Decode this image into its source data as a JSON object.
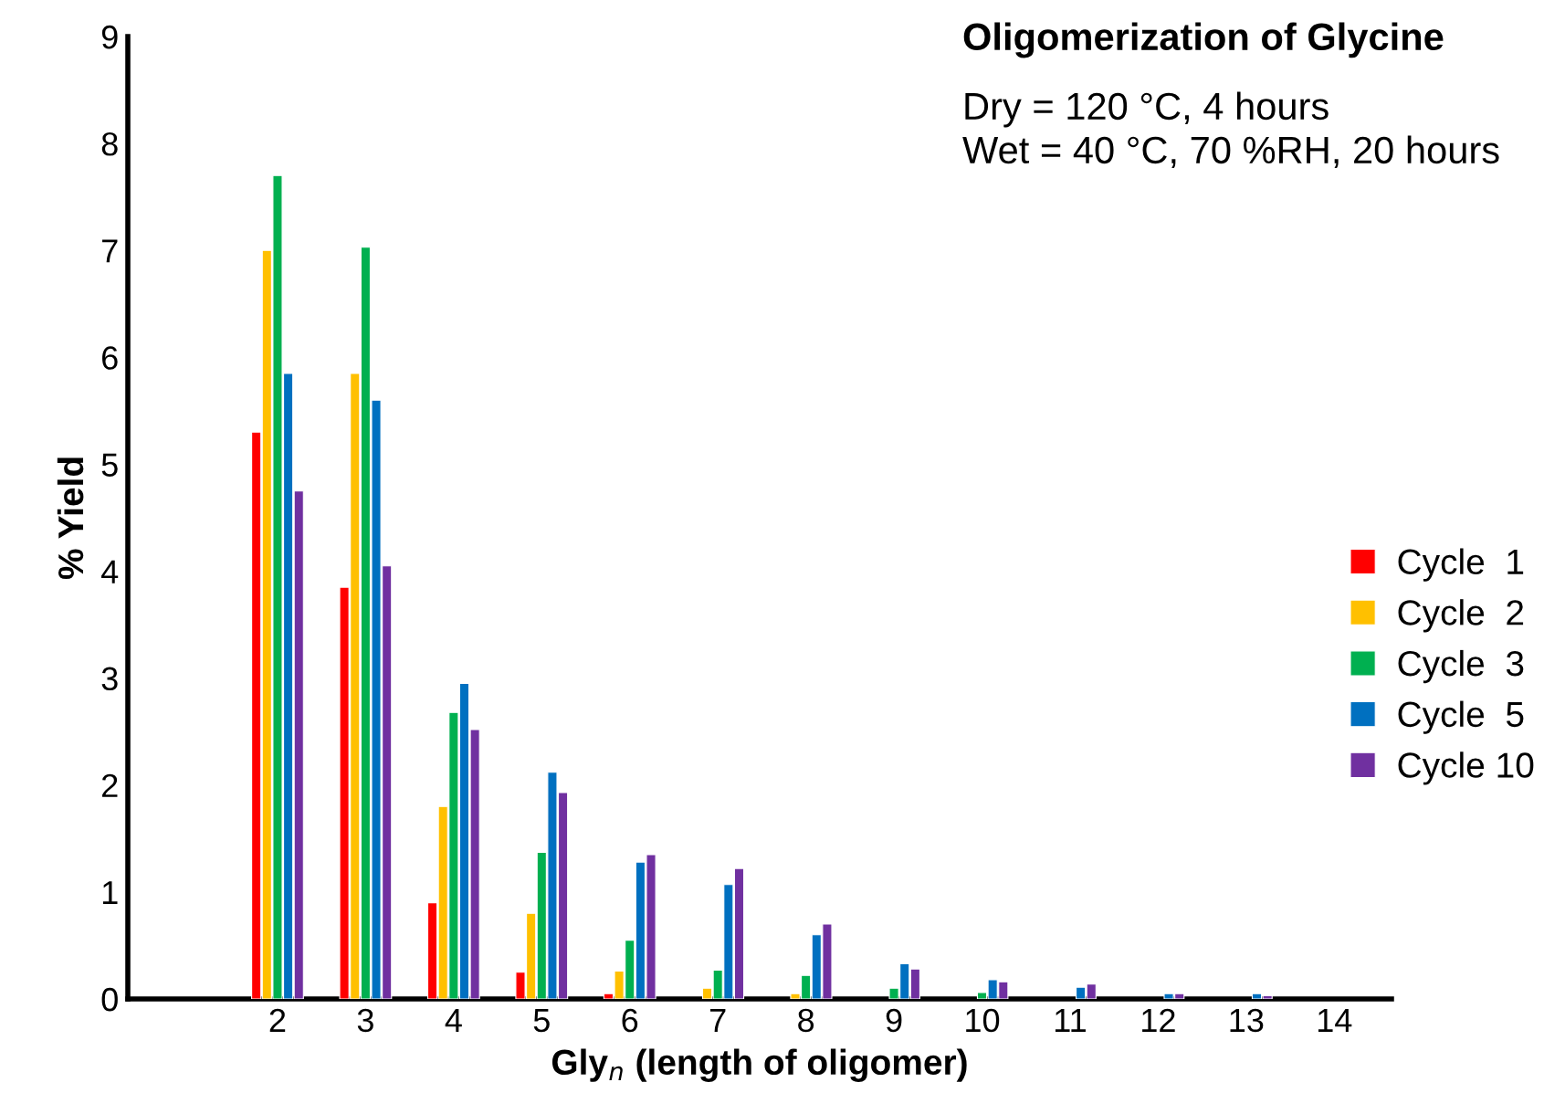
{
  "chart_data": {
    "type": "bar",
    "title": "Oligomerization of Glycine",
    "xlabel": "Gly$_{n}$ (length of oligomer)",
    "ylabel": "% Yield",
    "annotations": [
      "Dry = 120 °C, 4 hours",
      "Wet = 40 °C, 70 %RH, 20 hours"
    ],
    "categories": [
      null,
      "2",
      "3",
      "4",
      "5",
      "6",
      "7",
      "8",
      "9",
      "10",
      "11",
      "12",
      "13",
      "14"
    ],
    "series": [
      {
        "name": "Cycle  1",
        "color": "#ff0000",
        "values": [
          null,
          5.3,
          3.85,
          0.9,
          0.25,
          0.05,
          null,
          null,
          null,
          null,
          null,
          null,
          null,
          null
        ]
      },
      {
        "name": "Cycle  2",
        "color": "#ffc000",
        "values": [
          null,
          7.0,
          5.85,
          1.8,
          0.8,
          0.26,
          0.1,
          0.05,
          null,
          null,
          null,
          null,
          null,
          null
        ]
      },
      {
        "name": "Cycle  3",
        "color": "#00b050",
        "values": [
          null,
          7.7,
          7.03,
          2.68,
          1.37,
          0.55,
          0.27,
          0.22,
          0.1,
          0.06,
          null,
          null,
          null,
          null
        ]
      },
      {
        "name": "Cycle  5",
        "color": "#0070c0",
        "values": [
          null,
          5.85,
          5.6,
          2.95,
          2.12,
          1.28,
          1.07,
          0.6,
          0.33,
          0.18,
          0.11,
          0.05,
          0.05,
          null
        ]
      },
      {
        "name": "Cycle 10",
        "color": "#7030a0",
        "values": [
          null,
          4.75,
          4.05,
          2.52,
          1.93,
          1.35,
          1.22,
          0.7,
          0.28,
          0.16,
          0.14,
          0.05,
          0.03,
          null
        ]
      }
    ],
    "ylim": [
      0,
      9
    ],
    "yticks": [
      0,
      1,
      2,
      3,
      4,
      5,
      6,
      7,
      8,
      9
    ],
    "grid": false,
    "legend": "right"
  }
}
